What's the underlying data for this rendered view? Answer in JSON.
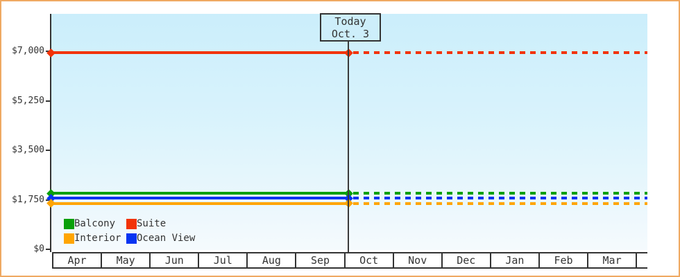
{
  "frame": {
    "border_color": "#efa963",
    "plot_bg_top": "#cbeefb",
    "plot_bg_bottom": "#f5fafd",
    "axis_color": "#333333"
  },
  "chart_data": {
    "type": "line",
    "x_categories": [
      "Apr",
      "May",
      "Jun",
      "Jul",
      "Aug",
      "Sep",
      "Oct",
      "Nov",
      "Dec",
      "Jan",
      "Feb",
      "Mar"
    ],
    "y_ticks": [
      {
        "label": "$0",
        "value": 0
      },
      {
        "label": "$1,750",
        "value": 1750
      },
      {
        "label": "$3,500",
        "value": 3500
      },
      {
        "label": "$5,250",
        "value": 5250
      },
      {
        "label": "$7,000",
        "value": 7000
      }
    ],
    "ylim": [
      0,
      7000
    ],
    "grid": false,
    "legend_position": "bottom-left",
    "today_marker": {
      "line1": "Today",
      "line2": "Oct. 3"
    },
    "line_style_note": "solid from Apr to today, dashed from today to Mar; flat values",
    "series": [
      {
        "name": "Suite",
        "color": "#f23307",
        "value": 6950
      },
      {
        "name": "Balcony",
        "color": "#0aa00a",
        "value": 1980
      },
      {
        "name": "Ocean View",
        "color": "#0634f2",
        "value": 1810
      },
      {
        "name": "Interior",
        "color": "#ffa502",
        "value": 1620
      }
    ]
  },
  "legend": {
    "items": [
      {
        "label": "Balcony",
        "color": "#0aa00a"
      },
      {
        "label": "Suite",
        "color": "#f23307"
      },
      {
        "label": "Interior",
        "color": "#ffa502"
      },
      {
        "label": "Ocean View",
        "color": "#0634f2"
      }
    ]
  }
}
